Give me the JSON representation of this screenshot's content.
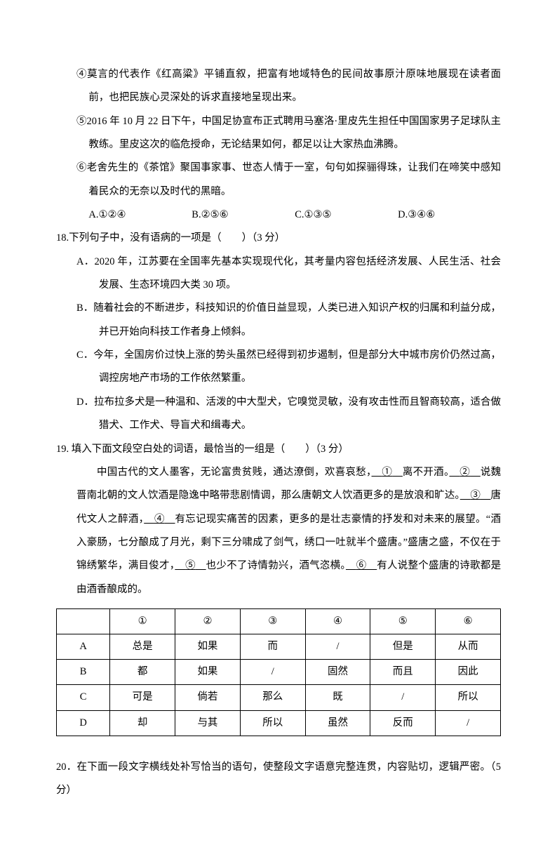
{
  "items": {
    "circ4": "④莫言的代表作《红高粱》平铺直叙，把富有地域特色的民间故事原汁原味地展现在读者面前，也把民族心灵深处的诉求直接地呈现出来。",
    "circ5": "⑤2016 年 10 月 22 日下午，中国足协宣布正式聘用马塞洛·里皮先生担任中国国家男子足球队主教练。里皮这次的临危授命，无论结果如何，都足以让大家热血沸腾。",
    "circ6": "⑥老舍先生的《茶馆》聚国事家事、世态人情于一室，句句如探骊得珠，让我们在啼笑中感知着民众的无奈以及时代的黑暗。"
  },
  "q17_choices": {
    "A": "A.①②④",
    "B": "B.②⑤⑥",
    "C": "C.①③⑤",
    "D": "D.③④⑥"
  },
  "q18": {
    "stem": "18.下列句子中，没有语病的一项是（　　）（3 分）",
    "A": "A．2020 年，江苏要在全国率先基本实现现代化，其考量内容包括经济发展、人民生活、社会发展、生态环境四大类 30 项。",
    "B": "B．随着社会的不断进步，科技知识的价值日益显现，人类已进入知识产权的归属和利益分成，并已开始向科技工作者身上倾斜。",
    "C": "C．今年，全国房价过快上涨的势头虽然已经得到初步遏制，但是部分大中城市房价仍然过高，调控房地产市场的工作依然繁重。",
    "D": "D．拉布拉多犬是一种温和、活泼的中大型犬，它嗅觉灵敏，没有攻击性而且智商较高，适合做猎犬、工作犬、导盲犬和缉毒犬。"
  },
  "q19": {
    "stem": "19.  填入下面文段空白处的词语，最恰当的一组是（　　）（3 分）",
    "passage": {
      "pre": "中国古代的文人墨客，无论富贵贫贱，通达潦倒，欢喜哀愁，",
      "u1": "①",
      "s1": "离不开酒。",
      "u2": "②",
      "s2": "说魏晋南北朝的文人饮酒是隐逸中略带悲剧情调，那么唐朝文人饮酒更多的是放浪和旷达。",
      "u3": "③",
      "s3": "唐代文人之醉酒，",
      "u4": "④",
      "s4": "有忘记现实痛苦的因素，更多的是壮志豪情的抒发和对未来的展望。“酒入豪肠，七分酿成了月光，剩下三分啸成了剑气，绣口一吐就半个盛唐。”盛唐之盛，不仅在于锦绣繁华，满目俊才，",
      "u5": "⑤",
      "s5": "也少不了诗情勃兴，酒气恣横。",
      "u6": "⑥",
      "s6": "有人说整个盛唐的诗歌都是由酒香酿成的。"
    },
    "table": {
      "header": [
        "",
        "①",
        "②",
        "③",
        "④",
        "⑤",
        "⑥"
      ],
      "rows": [
        [
          "A",
          "总是",
          "如果",
          "而",
          "/",
          "但是",
          "从而"
        ],
        [
          "B",
          "都",
          "如果",
          "/",
          "固然",
          "而且",
          "因此"
        ],
        [
          "C",
          "可是",
          "倘若",
          "那么",
          "既",
          "/",
          "所以"
        ],
        [
          "D",
          "却",
          "与其",
          "所以",
          "虽然",
          "反而",
          "/"
        ]
      ],
      "col_widths_pct": [
        12,
        14.6,
        14.6,
        14.6,
        14.6,
        14.6,
        14.6
      ],
      "border_color": "#000000",
      "font_size_pt": 11
    }
  },
  "q20": {
    "stem": "20．在下面一段文字横线处补写恰当的语句，使整段文字语意完整连贯，内容贴切，逻辑严密。（5分）"
  },
  "styles": {
    "page_bg": "#ffffff",
    "text_color": "#000000",
    "font_family": "SimSun",
    "base_fontsize_pt": 11,
    "line_height": 2.3
  }
}
